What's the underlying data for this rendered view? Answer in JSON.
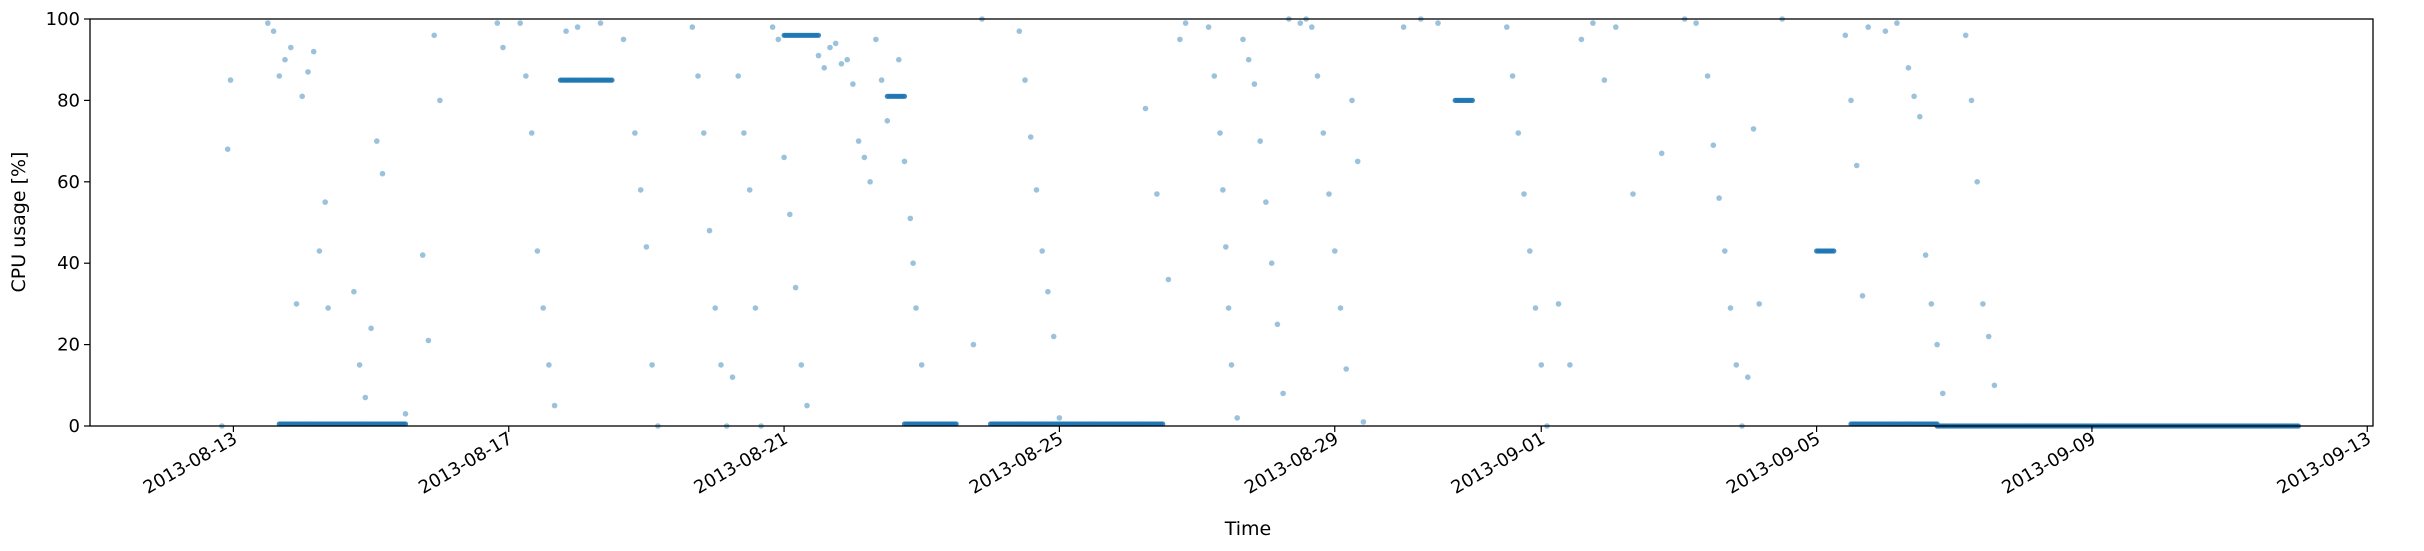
{
  "chart_data": {
    "type": "scatter",
    "title": "",
    "xlabel": "Time",
    "ylabel": "CPU usage [%]",
    "xlim": [
      "2013-08-10T22:00",
      "2013-09-13T02:00"
    ],
    "ylim": [
      0,
      100
    ],
    "yticks": [
      0,
      20,
      40,
      60,
      80,
      100
    ],
    "xticks": [
      "2013-08-13",
      "2013-08-17",
      "2013-08-21",
      "2013-08-25",
      "2013-08-29",
      "2013-09-01",
      "2013-09-05",
      "2013-09-09",
      "2013-09-13"
    ],
    "grid": false,
    "marker_color": "#1f77b4",
    "marker_alpha": 0.45,
    "dense_runs": [
      {
        "from": "2013-08-13T16:00",
        "to": "2013-08-15T12:00",
        "y": 0.5
      },
      {
        "from": "2013-08-17T18:00",
        "to": "2013-08-18T12:00",
        "y": 85
      },
      {
        "from": "2013-08-21T00:00",
        "to": "2013-08-21T12:00",
        "y": 96
      },
      {
        "from": "2013-08-22T12:00",
        "to": "2013-08-22T18:00",
        "y": 81
      },
      {
        "from": "2013-08-22T18:00",
        "to": "2013-08-23T12:00",
        "y": 0.5
      },
      {
        "from": "2013-08-24T00:00",
        "to": "2013-08-26T12:00",
        "y": 0.5
      },
      {
        "from": "2013-08-30T18:00",
        "to": "2013-08-31T00:00",
        "y": 80
      },
      {
        "from": "2013-09-05T00:00",
        "to": "2013-09-05T06:00",
        "y": 43
      },
      {
        "from": "2013-09-05T12:00",
        "to": "2013-09-06T18:00",
        "y": 0.5
      },
      {
        "from": "2013-09-06T18:00",
        "to": "2013-09-12T00:00",
        "y": 0
      }
    ],
    "points": [
      [
        "2013-08-12T20:00",
        0
      ],
      [
        "2013-08-12T22:00",
        68
      ],
      [
        "2013-08-12T23:00",
        85
      ],
      [
        "2013-08-13T12:00",
        99
      ],
      [
        "2013-08-13T14:00",
        97
      ],
      [
        "2013-08-13T16:00",
        86
      ],
      [
        "2013-08-13T18:00",
        90
      ],
      [
        "2013-08-13T20:00",
        93
      ],
      [
        "2013-08-13T22:00",
        30
      ],
      [
        "2013-08-14T00:00",
        81
      ],
      [
        "2013-08-14T02:00",
        87
      ],
      [
        "2013-08-14T04:00",
        92
      ],
      [
        "2013-08-14T06:00",
        43
      ],
      [
        "2013-08-14T08:00",
        55
      ],
      [
        "2013-08-14T09:00",
        29
      ],
      [
        "2013-08-14T18:00",
        33
      ],
      [
        "2013-08-14T20:00",
        15
      ],
      [
        "2013-08-14T22:00",
        7
      ],
      [
        "2013-08-15T00:00",
        24
      ],
      [
        "2013-08-15T02:00",
        70
      ],
      [
        "2013-08-15T04:00",
        62
      ],
      [
        "2013-08-15T12:00",
        3
      ],
      [
        "2013-08-15T18:00",
        42
      ],
      [
        "2013-08-15T20:00",
        21
      ],
      [
        "2013-08-15T22:00",
        96
      ],
      [
        "2013-08-16T00:00",
        80
      ],
      [
        "2013-08-16T20:00",
        99
      ],
      [
        "2013-08-16T22:00",
        93
      ],
      [
        "2013-08-17T04:00",
        99
      ],
      [
        "2013-08-17T06:00",
        86
      ],
      [
        "2013-08-17T08:00",
        72
      ],
      [
        "2013-08-17T10:00",
        43
      ],
      [
        "2013-08-17T12:00",
        29
      ],
      [
        "2013-08-17T14:00",
        15
      ],
      [
        "2013-08-17T16:00",
        5
      ],
      [
        "2013-08-17T20:00",
        97
      ],
      [
        "2013-08-18T00:00",
        98
      ],
      [
        "2013-08-18T08:00",
        99
      ],
      [
        "2013-08-18T16:00",
        95
      ],
      [
        "2013-08-18T20:00",
        72
      ],
      [
        "2013-08-18T22:00",
        58
      ],
      [
        "2013-08-19T00:00",
        44
      ],
      [
        "2013-08-19T02:00",
        15
      ],
      [
        "2013-08-19T04:00",
        0
      ],
      [
        "2013-08-19T16:00",
        98
      ],
      [
        "2013-08-19T18:00",
        86
      ],
      [
        "2013-08-19T20:00",
        72
      ],
      [
        "2013-08-19T22:00",
        48
      ],
      [
        "2013-08-20T00:00",
        29
      ],
      [
        "2013-08-20T02:00",
        15
      ],
      [
        "2013-08-20T04:00",
        0
      ],
      [
        "2013-08-20T06:00",
        12
      ],
      [
        "2013-08-20T08:00",
        86
      ],
      [
        "2013-08-20T10:00",
        72
      ],
      [
        "2013-08-20T12:00",
        58
      ],
      [
        "2013-08-20T14:00",
        29
      ],
      [
        "2013-08-20T16:00",
        0
      ],
      [
        "2013-08-20T20:00",
        98
      ],
      [
        "2013-08-20T22:00",
        95
      ],
      [
        "2013-08-21T00:00",
        66
      ],
      [
        "2013-08-21T02:00",
        52
      ],
      [
        "2013-08-21T04:00",
        34
      ],
      [
        "2013-08-21T06:00",
        15
      ],
      [
        "2013-08-21T08:00",
        5
      ],
      [
        "2013-08-21T12:00",
        91
      ],
      [
        "2013-08-21T14:00",
        88
      ],
      [
        "2013-08-21T16:00",
        93
      ],
      [
        "2013-08-21T18:00",
        94
      ],
      [
        "2013-08-21T20:00",
        89
      ],
      [
        "2013-08-21T22:00",
        90
      ],
      [
        "2013-08-22T00:00",
        84
      ],
      [
        "2013-08-22T02:00",
        70
      ],
      [
        "2013-08-22T04:00",
        66
      ],
      [
        "2013-08-22T06:00",
        60
      ],
      [
        "2013-08-22T08:00",
        95
      ],
      [
        "2013-08-22T10:00",
        85
      ],
      [
        "2013-08-22T12:00",
        75
      ],
      [
        "2013-08-22T16:00",
        90
      ],
      [
        "2013-08-22T18:00",
        65
      ],
      [
        "2013-08-22T20:00",
        51
      ],
      [
        "2013-08-22T21:00",
        40
      ],
      [
        "2013-08-22T22:00",
        29
      ],
      [
        "2013-08-23T00:00",
        15
      ],
      [
        "2013-08-23T18:00",
        20
      ],
      [
        "2013-08-23T21:00",
        100
      ],
      [
        "2013-08-24T10:00",
        97
      ],
      [
        "2013-08-24T12:00",
        85
      ],
      [
        "2013-08-24T14:00",
        71
      ],
      [
        "2013-08-24T16:00",
        58
      ],
      [
        "2013-08-24T18:00",
        43
      ],
      [
        "2013-08-24T20:00",
        33
      ],
      [
        "2013-08-24T22:00",
        22
      ],
      [
        "2013-08-25T00:00",
        2
      ],
      [
        "2013-08-26T06:00",
        78
      ],
      [
        "2013-08-26T10:00",
        57
      ],
      [
        "2013-08-26T14:00",
        36
      ],
      [
        "2013-08-26T18:00",
        95
      ],
      [
        "2013-08-26T20:00",
        99
      ],
      [
        "2013-08-27T04:00",
        98
      ],
      [
        "2013-08-27T06:00",
        86
      ],
      [
        "2013-08-27T08:00",
        72
      ],
      [
        "2013-08-27T09:00",
        58
      ],
      [
        "2013-08-27T10:00",
        44
      ],
      [
        "2013-08-27T11:00",
        29
      ],
      [
        "2013-08-27T12:00",
        15
      ],
      [
        "2013-08-27T14:00",
        2
      ],
      [
        "2013-08-27T16:00",
        95
      ],
      [
        "2013-08-27T18:00",
        90
      ],
      [
        "2013-08-27T20:00",
        84
      ],
      [
        "2013-08-27T22:00",
        70
      ],
      [
        "2013-08-28T00:00",
        55
      ],
      [
        "2013-08-28T02:00",
        40
      ],
      [
        "2013-08-28T04:00",
        25
      ],
      [
        "2013-08-28T06:00",
        8
      ],
      [
        "2013-08-28T08:00",
        100
      ],
      [
        "2013-08-28T12:00",
        99
      ],
      [
        "2013-08-28T14:00",
        100
      ],
      [
        "2013-08-28T16:00",
        98
      ],
      [
        "2013-08-28T18:00",
        86
      ],
      [
        "2013-08-28T20:00",
        72
      ],
      [
        "2013-08-28T22:00",
        57
      ],
      [
        "2013-08-29T00:00",
        43
      ],
      [
        "2013-08-29T02:00",
        29
      ],
      [
        "2013-08-29T04:00",
        14
      ],
      [
        "2013-08-29T06:00",
        80
      ],
      [
        "2013-08-29T08:00",
        65
      ],
      [
        "2013-08-29T10:00",
        1
      ],
      [
        "2013-08-30T00:00",
        98
      ],
      [
        "2013-08-30T06:00",
        100
      ],
      [
        "2013-08-30T12:00",
        99
      ],
      [
        "2013-08-31T12:00",
        98
      ],
      [
        "2013-08-31T14:00",
        86
      ],
      [
        "2013-08-31T16:00",
        72
      ],
      [
        "2013-08-31T18:00",
        57
      ],
      [
        "2013-08-31T20:00",
        43
      ],
      [
        "2013-08-31T22:00",
        29
      ],
      [
        "2013-09-01T00:00",
        15
      ],
      [
        "2013-09-01T02:00",
        0
      ],
      [
        "2013-09-01T06:00",
        30
      ],
      [
        "2013-09-01T10:00",
        15
      ],
      [
        "2013-09-01T14:00",
        95
      ],
      [
        "2013-09-01T18:00",
        99
      ],
      [
        "2013-09-01T22:00",
        85
      ],
      [
        "2013-09-02T02:00",
        98
      ],
      [
        "2013-09-02T08:00",
        57
      ],
      [
        "2013-09-02T18:00",
        67
      ],
      [
        "2013-09-03T02:00",
        100
      ],
      [
        "2013-09-03T06:00",
        99
      ],
      [
        "2013-09-03T10:00",
        86
      ],
      [
        "2013-09-03T12:00",
        69
      ],
      [
        "2013-09-03T14:00",
        56
      ],
      [
        "2013-09-03T16:00",
        43
      ],
      [
        "2013-09-03T18:00",
        29
      ],
      [
        "2013-09-03T20:00",
        15
      ],
      [
        "2013-09-03T22:00",
        0
      ],
      [
        "2013-09-04T00:00",
        12
      ],
      [
        "2013-09-04T02:00",
        73
      ],
      [
        "2013-09-04T04:00",
        30
      ],
      [
        "2013-09-04T12:00",
        100
      ],
      [
        "2013-09-05T10:00",
        96
      ],
      [
        "2013-09-05T12:00",
        80
      ],
      [
        "2013-09-05T14:00",
        64
      ],
      [
        "2013-09-05T16:00",
        32
      ],
      [
        "2013-09-05T18:00",
        98
      ],
      [
        "2013-09-06T00:00",
        97
      ],
      [
        "2013-09-06T04:00",
        99
      ],
      [
        "2013-09-06T08:00",
        88
      ],
      [
        "2013-09-06T10:00",
        81
      ],
      [
        "2013-09-06T12:00",
        76
      ],
      [
        "2013-09-06T14:00",
        42
      ],
      [
        "2013-09-06T16:00",
        30
      ],
      [
        "2013-09-06T18:00",
        20
      ],
      [
        "2013-09-06T20:00",
        8
      ],
      [
        "2013-09-07T04:00",
        96
      ],
      [
        "2013-09-07T06:00",
        80
      ],
      [
        "2013-09-07T08:00",
        60
      ],
      [
        "2013-09-07T10:00",
        30
      ],
      [
        "2013-09-07T12:00",
        22
      ],
      [
        "2013-09-07T14:00",
        10
      ]
    ]
  }
}
